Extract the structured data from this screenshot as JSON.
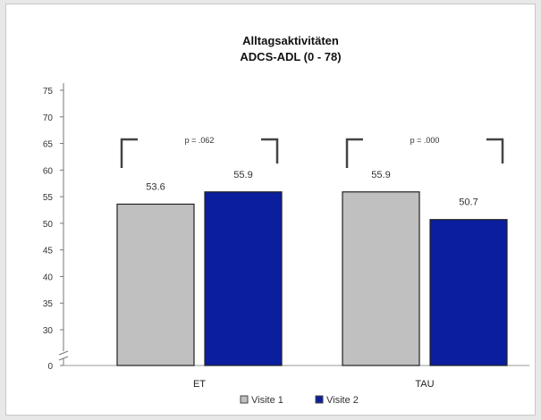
{
  "chart_data": {
    "type": "bar",
    "title": "Alltagsaktivitäten",
    "subtitle": "ADCS-ADL (0 - 78)",
    "categories": [
      "ET",
      "TAU"
    ],
    "series": [
      {
        "name": "Visite 1",
        "values": [
          53.6,
          55.9
        ],
        "color": "#c0c0c0"
      },
      {
        "name": "Visite 2",
        "values": [
          55.9,
          50.7
        ],
        "color": "#0a1e9e"
      }
    ],
    "value_labels": [
      [
        "53.6",
        "55.9"
      ],
      [
        "55.9",
        "50.7"
      ]
    ],
    "yticks": [
      0,
      30,
      35,
      40,
      45,
      50,
      55,
      60,
      65,
      70,
      75
    ],
    "ylim": [
      25,
      78
    ],
    "axis_break": true,
    "brackets": [
      {
        "category": "ET",
        "label": "p = .062"
      },
      {
        "category": "TAU",
        "label": "p = .000"
      }
    ],
    "legend_position": "bottom",
    "grid": false
  }
}
